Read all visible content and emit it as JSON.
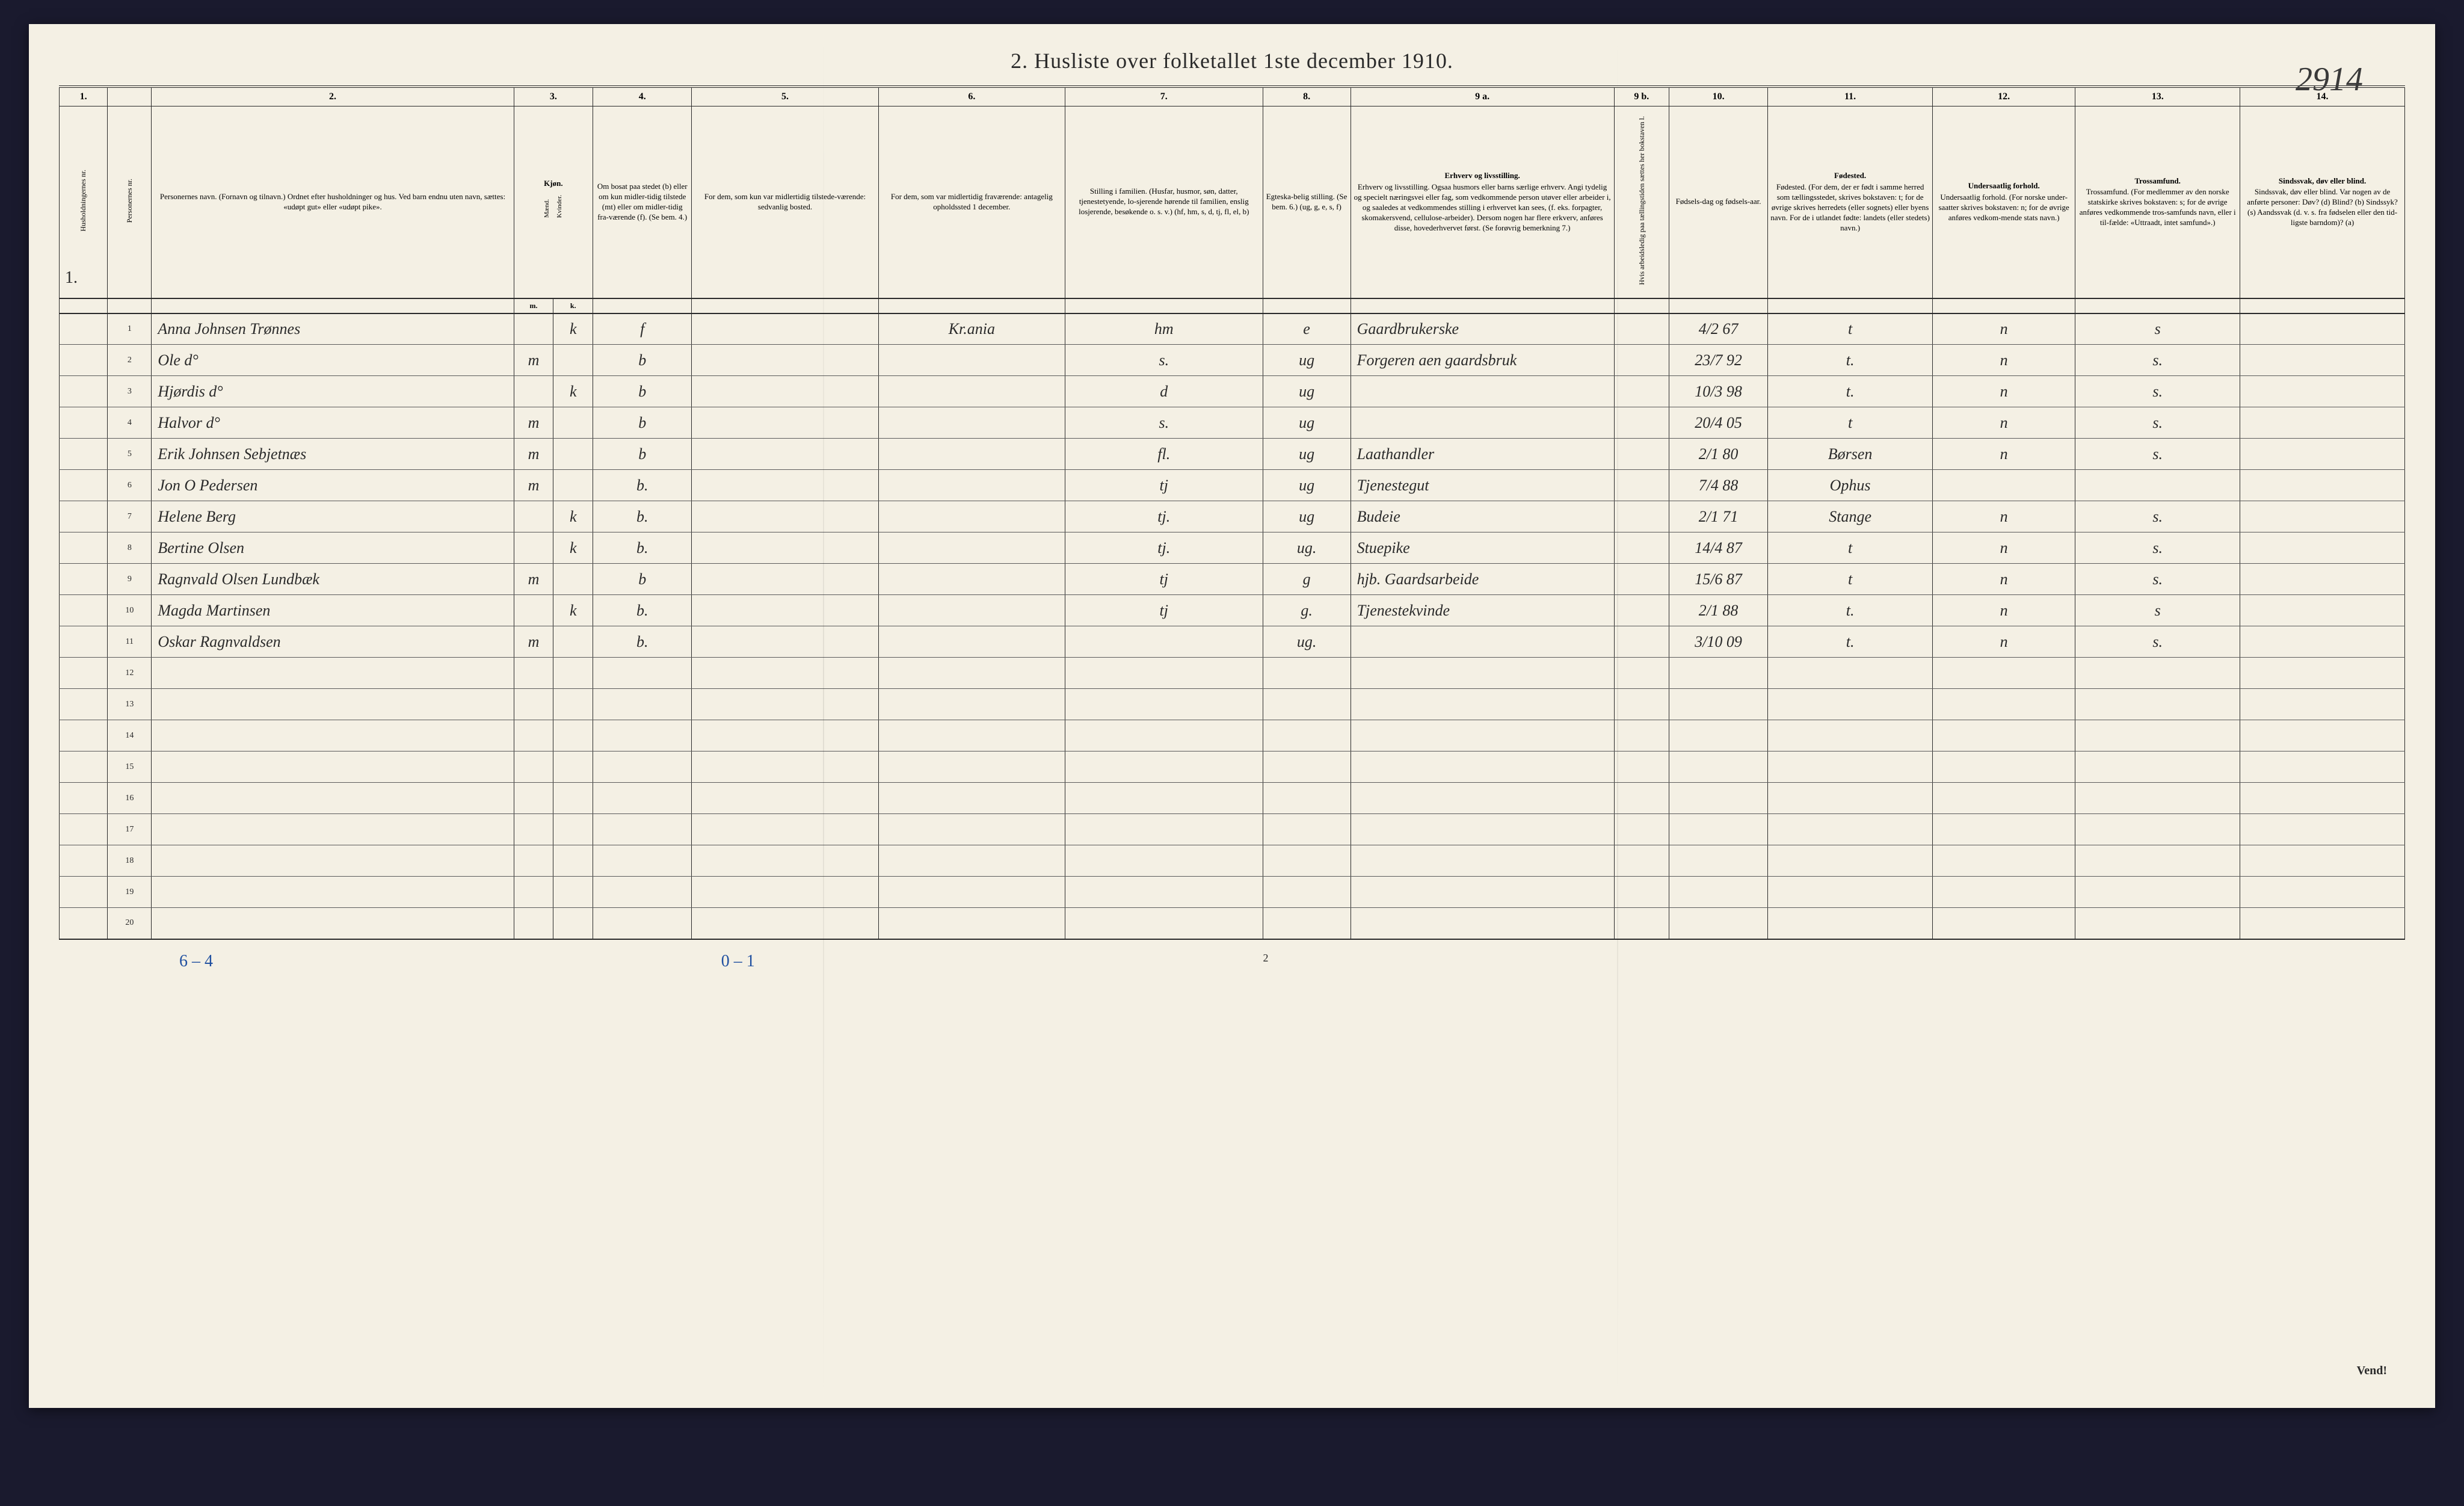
{
  "document": {
    "title": "2.  Husliste over folketallet 1ste december 1910.",
    "page_annotation": "2914",
    "page_number_bottom": "2",
    "vend": "Vend!",
    "footer_blue_1": "6 – 4",
    "footer_blue_2": "0 – 1"
  },
  "colors": {
    "paper": "#f4f0e4",
    "ink": "#2a2a2a",
    "red_ink": "#b03030",
    "blue_ink": "#2050a0",
    "rule": "#5a5a5a"
  },
  "column_numbers": [
    "1.",
    "",
    "2.",
    "3.",
    "4.",
    "5.",
    "6.",
    "7.",
    "8.",
    "9 a.",
    "9 b.",
    "10.",
    "11.",
    "12.",
    "13.",
    "14."
  ],
  "column_widths_pct": [
    2.2,
    2.0,
    16.5,
    1.8,
    1.8,
    4.5,
    8.5,
    8.5,
    9.0,
    4.0,
    12.0,
    2.5,
    4.5,
    7.5,
    6.5,
    7.5,
    7.5
  ],
  "headers": {
    "c1": "Husholdningernes nr.",
    "c1b": "Personernes nr.",
    "c2": "Personernes navn.\n(Fornavn og tilnavn.)\nOrdnet efter husholdninger og hus.\nVed barn endnu uten navn, sættes: «udøpt gut» eller «udøpt pike».",
    "c3": "Kjøn.",
    "c3_sub": "Mænd.",
    "c3b": "Kvinder.",
    "c4": "Om bosat paa stedet (b) eller om kun midler-tidig tilstede (mt) eller om midler-tidig fra-værende (f). (Se bem. 4.)",
    "c5": "For dem, som kun var midlertidig tilstede-værende:\nsedvanlig bosted.",
    "c6": "For dem, som var midlertidig fraværende:\nantagelig opholdssted 1 december.",
    "c7": "Stilling i familien.\n(Husfar, husmor, søn, datter, tjenestetyende, lo-sjerende hørende til familien, enslig losjerende, besøkende o. s. v.)\n(hf, hm, s, d, tj, fl, el, b)",
    "c8": "Egteska-belig stilling. (Se bem. 6.)\n(ug, g, e, s, f)",
    "c9a": "Erhverv og livsstilling.\nOgsaa husmors eller barns særlige erhverv. Angi tydelig og specielt næringsvei eller fag, som vedkommende person utøver eller arbeider i, og saaledes at vedkommendes stilling i erhvervet kan sees, (f. eks. forpagter, skomakersvend, cellulose-arbeider). Dersom nogen har flere erkverv, anføres disse, hovederhvervet først.\n(Se forøvrig bemerkning 7.)",
    "c9b": "Hvis arbeidsledig paa tællingstiden sættes her bokstaven l.",
    "c10": "Fødsels-dag og fødsels-aar.",
    "c11": "Fødested.\n(For dem, der er født i samme herred som tællingsstedet, skrives bokstaven: t; for de øvrige skrives herredets (eller sognets) eller byens navn. For de i utlandet fødte: landets (eller stedets) navn.)",
    "c12": "Undersaatlig forhold.\n(For norske under-saatter skrives bokstaven: n; for de øvrige anføres vedkom-mende stats navn.)",
    "c13": "Trossamfund.\n(For medlemmer av den norske statskirke skrives bokstaven: s; for de øvrige anføres vedkommende tros-samfunds navn, eller i til-fælde: «Uttraadt, intet samfund».)",
    "c14": "Sindssvak, døv eller blind.\nVar nogen av de anførte personer:\nDøv?      (d)\nBlind?    (b)\nSindssyk? (s)\nAandssvak (d. v. s. fra fødselen eller den tid-ligste barndom)? (a)"
  },
  "sub_headers": {
    "m": "m.",
    "k": "k."
  },
  "household_marker": "1.",
  "rows": [
    {
      "n": "1",
      "name": "Anna Johnsen Trønnes",
      "sex_m": "",
      "sex_k": "k",
      "res": "f",
      "away_place": "Kr.ania",
      "fam": "hm",
      "mar": "e",
      "occ": "Gaardbrukerske",
      "dob": "4/2 67",
      "birthplace": "t",
      "nat": "n",
      "rel": "s",
      "underline": true
    },
    {
      "n": "2",
      "name": "Ole                d°",
      "sex_m": "m",
      "sex_k": "",
      "res": "b",
      "away_place": "",
      "fam": "s.",
      "mar": "ug",
      "occ": "Forgeren aen gaardsbruk",
      "dob": "23/7 92",
      "birthplace": "t.",
      "nat": "n",
      "rel": "s."
    },
    {
      "n": "3",
      "name": "Hjørdis           d°",
      "sex_m": "",
      "sex_k": "k",
      "res": "b",
      "away_place": "",
      "fam": "d",
      "mar": "ug",
      "occ": "",
      "dob": "10/3 98",
      "birthplace": "t.",
      "nat": "n",
      "rel": "s."
    },
    {
      "n": "4",
      "name": "Halvor            d°",
      "sex_m": "m",
      "sex_k": "",
      "res": "b",
      "away_place": "",
      "fam": "s.",
      "mar": "ug",
      "occ": "",
      "dob": "20/4 05",
      "birthplace": "t",
      "nat": "n",
      "rel": "s."
    },
    {
      "n": "5",
      "name": "Erik Johnsen Sebjetnæs",
      "sex_m": "m",
      "sex_k": "",
      "res": "b",
      "away_place": "",
      "fam": "fl.",
      "mar": "ug",
      "occ": "Laathandler",
      "dob": "2/1 80",
      "birthplace": "Børsen",
      "nat": "n",
      "rel": "s."
    },
    {
      "n": "6",
      "name": "Jon O Pedersen",
      "sex_m": "m",
      "sex_k": "",
      "res": "b.",
      "away_place": "",
      "fam": "tj",
      "mar": "ug",
      "occ": "Tjenestegut",
      "dob": "7/4 88",
      "birthplace": "Ophus",
      "nat": "",
      "rel": "",
      "red": true
    },
    {
      "n": "7",
      "name": "Helene Berg",
      "sex_m": "",
      "sex_k": "k",
      "res": "b.",
      "away_place": "",
      "fam": "tj.",
      "mar": "ug",
      "occ": "Budeie",
      "dob": "2/1 71",
      "birthplace": "Stange",
      "nat": "n",
      "rel": "s."
    },
    {
      "n": "8",
      "name": "Bertine Olsen",
      "sex_m": "",
      "sex_k": "k",
      "res": "b.",
      "away_place": "",
      "fam": "tj.",
      "mar": "ug.",
      "occ": "Stuepike",
      "dob": "14/4 87",
      "birthplace": "t",
      "nat": "n",
      "rel": "s."
    },
    {
      "n": "9",
      "name": "Ragnvald Olsen Lundbæk",
      "sex_m": "m",
      "sex_k": "",
      "res": "b",
      "away_place": "",
      "fam": "tj",
      "mar": "g",
      "occ": "hjb. Gaardsarbeide",
      "dob": "15/6 87",
      "birthplace": "t",
      "nat": "n",
      "rel": "s."
    },
    {
      "n": "10",
      "name": "Magda Martinsen",
      "sex_m": "",
      "sex_k": "k",
      "res": "b.",
      "away_place": "",
      "fam": "tj",
      "mar": "g.",
      "occ": "Tjenestekvinde",
      "dob": "2/1 88",
      "birthplace": "t.",
      "nat": "n",
      "rel": "s"
    },
    {
      "n": "11",
      "name": "Oskar Ragnvaldsen",
      "sex_m": "m",
      "sex_k": "",
      "res": "b.",
      "away_place": "",
      "fam": "",
      "mar": "ug.",
      "occ": "",
      "dob": "3/10 09",
      "birthplace": "t.",
      "nat": "n",
      "rel": "s."
    }
  ],
  "empty_rows": [
    "12",
    "13",
    "14",
    "15",
    "16",
    "17",
    "18",
    "19",
    "20"
  ]
}
